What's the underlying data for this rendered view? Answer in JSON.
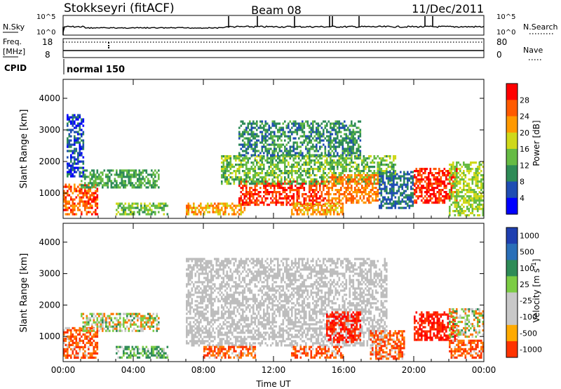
{
  "header": {
    "station": "Stokkseyri (fitACF)",
    "beam": "Beam 08",
    "date": "11/Dec/2011"
  },
  "status_panels": {
    "nsky_label": "N.Sky",
    "nsearch_label": "N.Search",
    "nsky_ticks": [
      "10^5",
      "10^0"
    ],
    "nsearch_ticks": [
      "10^5",
      "10^0"
    ],
    "freq_label": "Freq.",
    "freq_unit": "[MHz]",
    "freq_ticks": [
      "18",
      "8"
    ],
    "nave_label": "Nave",
    "nave_ticks": [
      "80",
      "0"
    ],
    "cpid_label": "CPID",
    "cpid_value": "normal 150"
  },
  "colors": {
    "power_scale": [
      "#0000ff",
      "#1f4db3",
      "#2e8b57",
      "#66bb44",
      "#cfd81a",
      "#ff9900",
      "#ff5a00",
      "#ff0000"
    ],
    "velocity_scale": [
      "#1f3fb0",
      "#2a6fb8",
      "#2e8b57",
      "#7ccc44",
      "#c8c8c8",
      "#c8c8c8",
      "#ffaa00",
      "#ff7700",
      "#ff3300",
      "#ff0000"
    ],
    "ground_scatter": "#bdbdbd"
  },
  "chart_data": [
    {
      "type": "heatmap",
      "panel": "power",
      "xlabel": "Time UT",
      "ylabel": "Slant Range [km]",
      "x_ticks": [
        "00:00",
        "04:00",
        "08:00",
        "12:00",
        "16:00",
        "20:00",
        "00:00"
      ],
      "xlim": [
        0,
        24
      ],
      "ylim": [
        200,
        4600
      ],
      "y_ticks": [
        1000,
        2000,
        3000,
        4000
      ],
      "colorbar_label": "Power [dB]",
      "colorbar_ticks": [
        "4",
        "8",
        "12",
        "16",
        "20",
        "24",
        "28"
      ],
      "colorbar_range": [
        0,
        32
      ],
      "regions": [
        {
          "t0": 0.0,
          "t1": 2.0,
          "r0": 300,
          "r1": 1300,
          "v": 26
        },
        {
          "t0": 1.0,
          "t1": 5.5,
          "r0": 1200,
          "r1": 1750,
          "v": 12
        },
        {
          "t0": 0.2,
          "t1": 1.2,
          "r0": 1500,
          "r1": 3500,
          "v": 6
        },
        {
          "t0": 3.0,
          "t1": 6.0,
          "r0": 300,
          "r1": 700,
          "v": 14
        },
        {
          "t0": 7.0,
          "t1": 10.5,
          "r0": 350,
          "r1": 700,
          "v": 22
        },
        {
          "t0": 10.0,
          "t1": 15.0,
          "r0": 600,
          "r1": 1400,
          "v": 28
        },
        {
          "t0": 9.0,
          "t1": 19.0,
          "r0": 1300,
          "r1": 2200,
          "v": 14
        },
        {
          "t0": 10.0,
          "t1": 17.0,
          "r0": 2200,
          "r1": 3300,
          "v": 10
        },
        {
          "t0": 15.0,
          "t1": 18.0,
          "r0": 700,
          "r1": 1600,
          "v": 24
        },
        {
          "t0": 13.0,
          "t1": 16.0,
          "r0": 300,
          "r1": 700,
          "v": 22
        },
        {
          "t0": 18.0,
          "t1": 20.0,
          "r0": 500,
          "r1": 1700,
          "v": 8
        },
        {
          "t0": 20.0,
          "t1": 22.5,
          "r0": 700,
          "r1": 1800,
          "v": 29
        },
        {
          "t0": 22.0,
          "t1": 24.0,
          "r0": 300,
          "r1": 2000,
          "v": 16
        }
      ]
    },
    {
      "type": "heatmap",
      "panel": "velocity",
      "xlabel": "Time UT",
      "ylabel": "Slant Range [km]",
      "x_ticks": [
        "00:00",
        "04:00",
        "08:00",
        "12:00",
        "16:00",
        "20:00",
        "00:00"
      ],
      "xlim": [
        0,
        24
      ],
      "ylim": [
        200,
        4600
      ],
      "y_ticks": [
        1000,
        2000,
        3000,
        4000
      ],
      "colorbar_label": "Velocity [m s^-1]",
      "colorbar_ticks": [
        "1000",
        "500",
        "100",
        "25",
        "-25",
        "-100",
        "-500",
        "-1000"
      ],
      "regions": [
        {
          "t0": 0.0,
          "t1": 2.0,
          "r0": 300,
          "r1": 1300,
          "v": -100
        },
        {
          "t0": 1.0,
          "t1": 5.5,
          "r0": 1200,
          "r1": 1750,
          "v": 25
        },
        {
          "t0": 3.0,
          "t1": 6.0,
          "r0": 300,
          "r1": 700,
          "v": 100
        },
        {
          "t0": 7.0,
          "t1": 18.5,
          "r0": 700,
          "r1": 3500,
          "v": 0,
          "ground": true
        },
        {
          "t0": 8.0,
          "t1": 11.0,
          "r0": 350,
          "r1": 700,
          "v": -100
        },
        {
          "t0": 13.0,
          "t1": 16.0,
          "r0": 300,
          "r1": 700,
          "v": -100
        },
        {
          "t0": 15.0,
          "t1": 17.0,
          "r0": 800,
          "r1": 1800,
          "v": -500
        },
        {
          "t0": 17.5,
          "t1": 19.5,
          "r0": 300,
          "r1": 1200,
          "v": -100
        },
        {
          "t0": 20.0,
          "t1": 22.5,
          "r0": 900,
          "r1": 1800,
          "v": -500
        },
        {
          "t0": 22.0,
          "t1": 24.0,
          "r0": 300,
          "r1": 900,
          "v": -100
        },
        {
          "t0": 22.0,
          "t1": 24.0,
          "r0": 1000,
          "r1": 1900,
          "v": 25
        }
      ]
    }
  ]
}
